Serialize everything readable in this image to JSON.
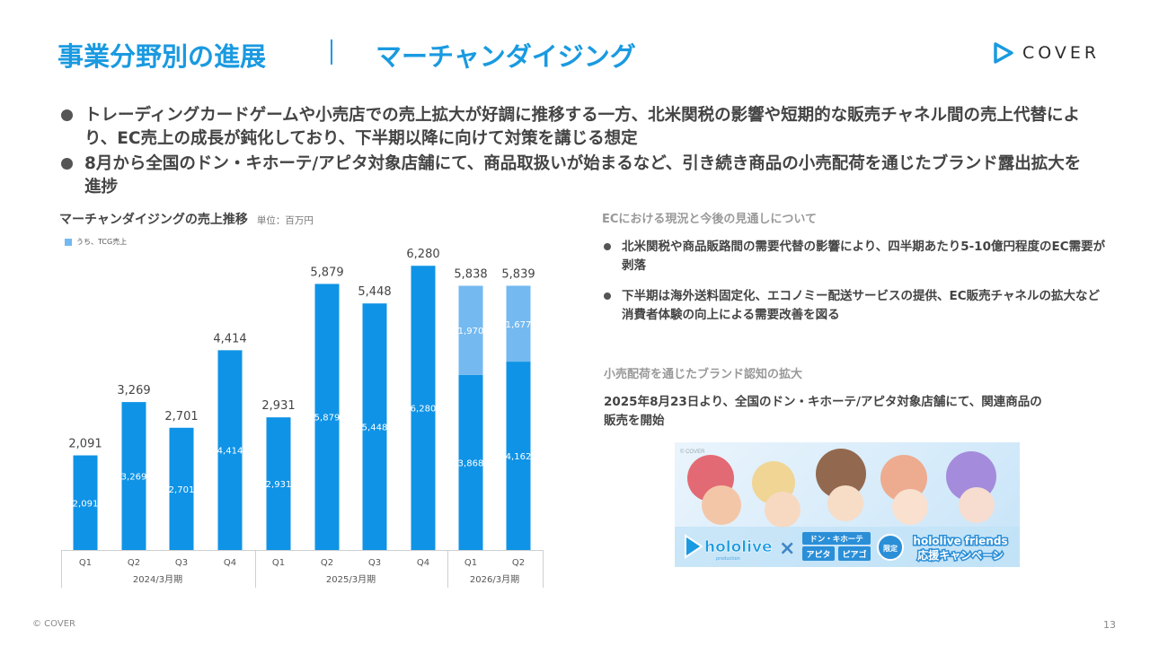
{
  "header": {
    "title": "事業分野別の進展",
    "subtitle": "マーチャンダイジング",
    "logo_text": "COVER"
  },
  "bullets": [
    "トレーディングカードゲームや小売店での売上拡大が好調に推移する一方、北米関税の影響や短期的な販売チャネル間の売上代替により、EC売上の成長が鈍化しており、下半期以降に向けて対策を講じる想定",
    "8月から全国のドン・キホーテ/アピタ対象店舗にて、商品取扱いが始まるなど、引き続き商品の小売配荷を通じたブランド露出拡大を進捗"
  ],
  "chart_data": {
    "type": "bar",
    "title": "マーチャンダイジングの売上推移",
    "unit": "単位：百万円",
    "legend": "うち、TCG売上",
    "categories": [
      "Q1",
      "Q2",
      "Q3",
      "Q4",
      "Q1",
      "Q2",
      "Q3",
      "Q4",
      "Q1",
      "Q2"
    ],
    "groups": [
      {
        "label": "2024/3月期",
        "count": 4
      },
      {
        "label": "2025/3月期",
        "count": 4
      },
      {
        "label": "2026/3月期",
        "count": 2
      }
    ],
    "totals": [
      2091,
      3269,
      2701,
      4414,
      2931,
      5879,
      5448,
      6280,
      5838,
      5839
    ],
    "series": [
      {
        "name": "",
        "values": [
          2091,
          3269,
          2701,
          4414,
          2931,
          5879,
          5448,
          6280,
          3868,
          4162
        ],
        "color": "#0f93e6"
      },
      {
        "name": "うち、TCG売上",
        "values": [
          0,
          0,
          0,
          0,
          0,
          0,
          0,
          0,
          1970,
          1677
        ],
        "color": "#74b9f0"
      }
    ],
    "ylim": [
      0,
      6800
    ]
  },
  "right": {
    "ec_heading": "ECにおける現況と今後の見通しについて",
    "ec_bullets": [
      "北米関税や商品販路間の需要代替の影響により、四半期あたり5-10億円程度のEC需要が剥落",
      "下半期は海外送料固定化、エコノミー配送サービスの提供、EC販売チャネルの拡大など消費者体験の向上による需要改善を図る"
    ],
    "retail_heading": "小売配荷を通じたブランド認知の拡大",
    "retail_text": "2025年8月23日より、全国のドン・キホーテ/アピタ対象店舗にて、関連商品の販売を開始",
    "banner": {
      "copyright": "© COVER",
      "brand": "hololive",
      "brand_sub": "production",
      "partner_top": "ドン・キホーテ",
      "partner_left": "アピタ",
      "partner_right": "ピアゴ",
      "limited": "限定",
      "campaign_line1": "hololive friends",
      "campaign_line2": "応援キャンペーン"
    }
  },
  "footer": {
    "copyright": "© COVER",
    "page": "13"
  },
  "colors": {
    "accent": "#1a9ae0",
    "bar_main": "#0f93e6",
    "bar_tcg": "#74b9f0"
  }
}
